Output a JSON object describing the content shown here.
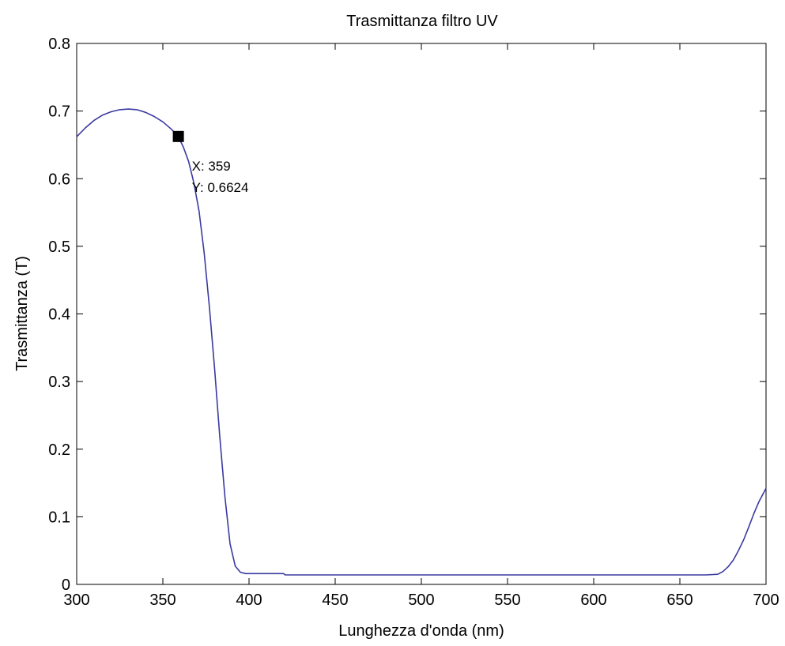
{
  "chart_data": {
    "type": "line",
    "title": "Trasmittanza filtro UV",
    "xlabel": "Lunghezza d'onda (nm)",
    "ylabel": "Trasmittanza (T)",
    "xlim": [
      300,
      700
    ],
    "ylim": [
      0,
      0.8
    ],
    "xticks": [
      300,
      350,
      400,
      450,
      500,
      550,
      600,
      650,
      700
    ],
    "yticks": [
      0,
      0.1,
      0.2,
      0.3,
      0.4,
      0.5,
      0.6,
      0.7,
      0.8
    ],
    "xtick_labels": [
      "300",
      "350",
      "400",
      "450",
      "500",
      "550",
      "600",
      "650",
      "700"
    ],
    "ytick_labels": [
      "0",
      "0.1",
      "0.2",
      "0.3",
      "0.4",
      "0.5",
      "0.6",
      "0.7",
      "0.8"
    ],
    "grid": false,
    "line_color": "#3a3aa0",
    "series": [
      {
        "x": [
          300,
          305,
          310,
          315,
          320,
          325,
          330,
          335,
          340,
          345,
          350,
          355,
          359,
          362,
          365,
          368,
          371,
          374,
          377,
          380,
          383,
          386,
          389,
          392,
          395,
          398,
          400,
          405,
          410,
          415,
          420,
          421,
          430,
          450,
          500,
          550,
          600,
          650,
          665,
          672,
          675,
          678,
          681,
          684,
          687,
          690,
          693,
          696,
          700
        ],
        "y": [
          0.662,
          0.675,
          0.686,
          0.694,
          0.699,
          0.702,
          0.703,
          0.702,
          0.698,
          0.692,
          0.684,
          0.673,
          0.6624,
          0.646,
          0.625,
          0.594,
          0.552,
          0.49,
          0.41,
          0.32,
          0.22,
          0.13,
          0.06,
          0.027,
          0.018,
          0.016,
          0.016,
          0.016,
          0.016,
          0.016,
          0.016,
          0.014,
          0.014,
          0.014,
          0.014,
          0.014,
          0.014,
          0.014,
          0.014,
          0.015,
          0.019,
          0.026,
          0.036,
          0.05,
          0.066,
          0.085,
          0.105,
          0.123,
          0.142
        ]
      }
    ],
    "datatip": {
      "x": 359,
      "y": 0.6624,
      "x_text": "X: 359",
      "y_text": "Y: 0.6624"
    }
  }
}
